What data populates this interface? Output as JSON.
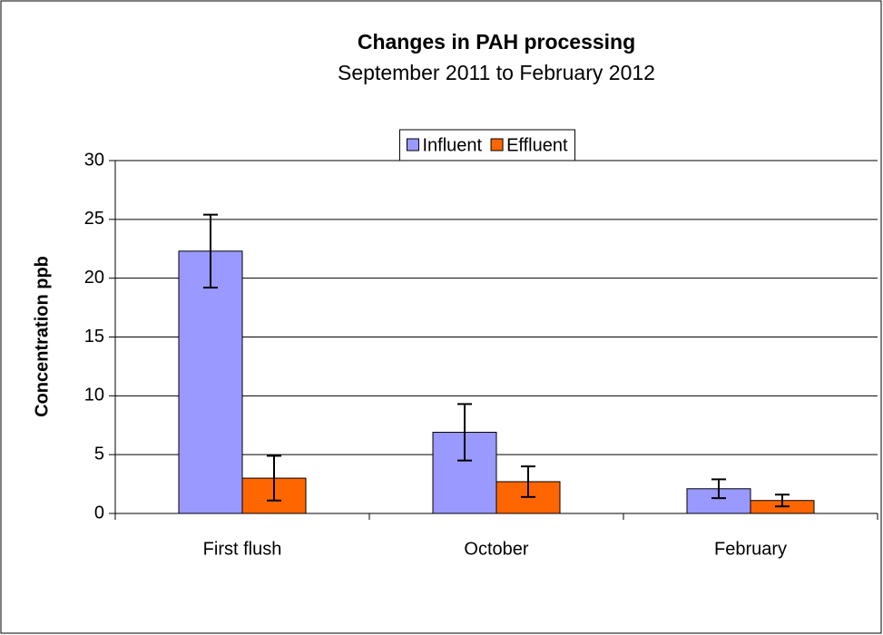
{
  "chart_data": {
    "type": "bar",
    "title": "Changes in PAH processing",
    "subtitle": "September 2011 to February 2012",
    "y_label": "Concentration ppb",
    "categories": [
      "First flush",
      "October",
      "February"
    ],
    "series": [
      {
        "name": "Influent",
        "color": "#9999ff",
        "values": [
          22.3,
          6.9,
          2.1
        ],
        "errors": [
          3.1,
          2.4,
          0.8
        ]
      },
      {
        "name": "Effluent",
        "color": "#ff6600",
        "values": [
          3.0,
          2.7,
          1.1
        ],
        "errors": [
          1.9,
          1.3,
          0.5
        ]
      }
    ],
    "ylim": [
      0,
      30
    ],
    "yticks": [
      0,
      5,
      10,
      15,
      20,
      25,
      30
    ],
    "grid": true,
    "legend": "top"
  }
}
